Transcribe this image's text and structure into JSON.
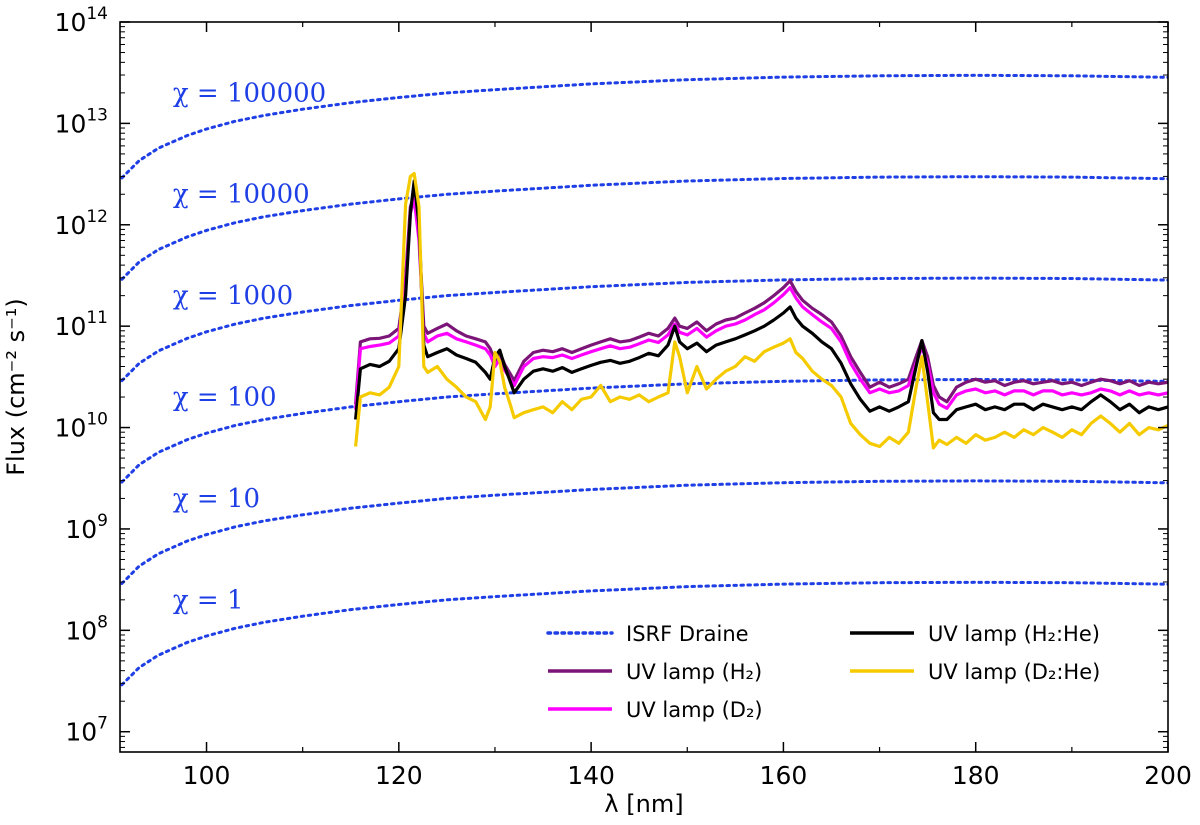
{
  "chart_data": {
    "type": "line",
    "title": "",
    "xlabel": "λ [nm]",
    "ylabel": "Flux (cm⁻² s⁻¹)",
    "xlim": [
      91,
      200
    ],
    "ylim_log10": [
      6.8,
      14
    ],
    "yscale": "log",
    "x_ticks": [
      100,
      120,
      140,
      160,
      180,
      200
    ],
    "y_tick_exponents": [
      7,
      8,
      9,
      10,
      11,
      12,
      13,
      14
    ],
    "colors": {
      "isrf": "#1f3fe6",
      "h2": "#7b1577",
      "d2": "#ff00ff",
      "h2he": "#000000",
      "d2he": "#f5cb00"
    },
    "isrf_scalings": [
      {
        "chi_text": "χ = 100000",
        "chi": 100000
      },
      {
        "chi_text": "χ = 10000",
        "chi": 10000
      },
      {
        "chi_text": "χ = 1000",
        "chi": 1000
      },
      {
        "chi_text": "χ = 100",
        "chi": 100
      },
      {
        "chi_text": "χ = 10",
        "chi": 10
      },
      {
        "chi_text": "χ = 1",
        "chi": 1
      }
    ],
    "isrf_base_curve": {
      "wavelength_nm": [
        91.2,
        93,
        95,
        98,
        100,
        103,
        106,
        110,
        115,
        120,
        125,
        130,
        140,
        150,
        160,
        170,
        180,
        190,
        200
      ],
      "flux_chi1": [
        29000000.0,
        43000000.0,
        57000000.0,
        76000000.0,
        88000000.0,
        105000000.0,
        120000000.0,
        138000000.0,
        160000000.0,
        180000000.0,
        200000000.0,
        215000000.0,
        245000000.0,
        270000000.0,
        286000000.0,
        295000000.0,
        298000000.0,
        295000000.0,
        285000000.0
      ]
    },
    "series": [
      {
        "name": "UV lamp (H₂)",
        "key": "h2",
        "x": [
          115.5,
          116,
          117,
          118,
          119,
          120,
          120.7,
          121.2,
          121.6,
          122.1,
          122.6,
          123,
          124,
          125,
          126,
          127,
          128,
          129,
          129.5,
          130,
          130.5,
          131,
          131.5,
          132,
          133,
          134,
          135,
          136,
          137,
          138,
          139,
          140,
          141,
          142,
          143,
          144,
          145,
          146,
          147,
          148,
          148.7,
          149.2,
          150,
          151,
          152,
          153,
          154,
          155,
          156,
          157,
          158,
          159,
          160,
          160.7,
          161.3,
          162,
          163,
          164,
          165,
          166,
          167,
          168,
          169,
          170,
          171,
          172,
          173,
          173.8,
          174.4,
          175,
          175.6,
          176.2,
          177,
          178,
          179,
          180,
          181,
          182,
          183,
          184,
          185,
          186,
          187,
          188,
          189,
          190,
          191,
          192,
          193,
          194,
          195,
          196,
          197,
          198,
          199,
          200
        ],
        "y": [
          17000000000.0,
          70000000000.0,
          75000000000.0,
          76000000000.0,
          80000000000.0,
          95000000000.0,
          300000000000.0,
          1500000000000.0,
          2000000000000.0,
          800000000000.0,
          100000000000.0,
          85000000000.0,
          95000000000.0,
          105000000000.0,
          90000000000.0,
          80000000000.0,
          75000000000.0,
          70000000000.0,
          60000000000.0,
          45000000000.0,
          55000000000.0,
          42000000000.0,
          35000000000.0,
          29000000000.0,
          45000000000.0,
          55000000000.0,
          58000000000.0,
          56000000000.0,
          60000000000.0,
          55000000000.0,
          60000000000.0,
          65000000000.0,
          70000000000.0,
          75000000000.0,
          70000000000.0,
          72000000000.0,
          78000000000.0,
          85000000000.0,
          80000000000.0,
          95000000000.0,
          120000000000.0,
          100000000000.0,
          95000000000.0,
          110000000000.0,
          90000000000.0,
          105000000000.0,
          115000000000.0,
          120000000000.0,
          135000000000.0,
          150000000000.0,
          170000000000.0,
          200000000000.0,
          240000000000.0,
          280000000000.0,
          220000000000.0,
          180000000000.0,
          150000000000.0,
          130000000000.0,
          110000000000.0,
          80000000000.0,
          50000000000.0,
          35000000000.0,
          25000000000.0,
          28000000000.0,
          25000000000.0,
          27000000000.0,
          30000000000.0,
          50000000000.0,
          72000000000.0,
          50000000000.0,
          26000000000.0,
          20000000000.0,
          18000000000.0,
          25000000000.0,
          28000000000.0,
          30000000000.0,
          28000000000.0,
          29000000000.0,
          26000000000.0,
          28000000000.0,
          29000000000.0,
          27000000000.0,
          28000000000.0,
          29000000000.0,
          27000000000.0,
          28000000000.0,
          26000000000.0,
          28000000000.0,
          30000000000.0,
          29000000000.0,
          27000000000.0,
          29000000000.0,
          26000000000.0,
          28000000000.0,
          27000000000.0,
          28000000000.0
        ]
      },
      {
        "name": "UV lamp (D₂)",
        "key": "d2",
        "x": [
          115.5,
          116,
          117,
          118,
          119,
          120,
          120.7,
          121.2,
          121.6,
          122.1,
          122.6,
          123,
          124,
          125,
          126,
          127,
          128,
          129,
          129.5,
          130,
          130.5,
          131,
          131.5,
          132,
          133,
          134,
          135,
          136,
          137,
          138,
          139,
          140,
          141,
          142,
          143,
          144,
          145,
          146,
          147,
          148,
          148.7,
          149.2,
          150,
          151,
          152,
          153,
          154,
          155,
          156,
          157,
          158,
          159,
          160,
          160.7,
          161.3,
          162,
          163,
          164,
          165,
          166,
          167,
          168,
          169,
          170,
          171,
          172,
          173,
          173.8,
          174.4,
          175,
          175.6,
          176.2,
          177,
          178,
          179,
          180,
          181,
          182,
          183,
          184,
          185,
          186,
          187,
          188,
          189,
          190,
          191,
          192,
          193,
          194,
          195,
          196,
          197,
          198,
          199,
          200
        ],
        "y": [
          15000000000.0,
          60000000000.0,
          63000000000.0,
          65000000000.0,
          68000000000.0,
          80000000000.0,
          260000000000.0,
          1300000000000.0,
          1800000000000.0,
          700000000000.0,
          85000000000.0,
          70000000000.0,
          80000000000.0,
          85000000000.0,
          75000000000.0,
          70000000000.0,
          65000000000.0,
          60000000000.0,
          52000000000.0,
          40000000000.0,
          48000000000.0,
          37000000000.0,
          31000000000.0,
          26000000000.0,
          40000000000.0,
          48000000000.0,
          50000000000.0,
          49000000000.0,
          52000000000.0,
          48000000000.0,
          52000000000.0,
          56000000000.0,
          60000000000.0,
          64000000000.0,
          60000000000.0,
          62000000000.0,
          67000000000.0,
          73000000000.0,
          69000000000.0,
          82000000000.0,
          105000000000.0,
          87000000000.0,
          82000000000.0,
          95000000000.0,
          78000000000.0,
          90000000000.0,
          100000000000.0,
          105000000000.0,
          115000000000.0,
          130000000000.0,
          145000000000.0,
          170000000000.0,
          205000000000.0,
          240000000000.0,
          190000000000.0,
          155000000000.0,
          130000000000.0,
          110000000000.0,
          95000000000.0,
          70000000000.0,
          43000000000.0,
          30000000000.0,
          22000000000.0,
          24000000000.0,
          22000000000.0,
          23000000000.0,
          26000000000.0,
          43000000000.0,
          62000000000.0,
          43000000000.0,
          22000000000.0,
          17000000000.0,
          15500000000.0,
          21000000000.0,
          23000000000.0,
          24000000000.0,
          22000000000.0,
          23000000000.0,
          21000000000.0,
          23000000000.0,
          23000000000.0,
          21000000000.0,
          23000000000.0,
          23000000000.0,
          21000000000.0,
          22000000000.0,
          21000000000.0,
          22000000000.0,
          24000000000.0,
          23000000000.0,
          21000000000.0,
          23000000000.0,
          21000000000.0,
          22000000000.0,
          21000000000.0,
          22000000000.0
        ]
      },
      {
        "name": "UV lamp (H₂:He)",
        "key": "h2he",
        "x": [
          115.5,
          116,
          117,
          118,
          119,
          120,
          120.7,
          121.2,
          121.6,
          122.1,
          122.6,
          123,
          124,
          125,
          126,
          127,
          128,
          129,
          129.5,
          130,
          130.5,
          131,
          131.5,
          132,
          133,
          134,
          135,
          136,
          137,
          138,
          139,
          140,
          141,
          142,
          143,
          144,
          145,
          146,
          147,
          148,
          148.7,
          149.2,
          150,
          151,
          152,
          153,
          154,
          155,
          156,
          157,
          158,
          159,
          160,
          160.7,
          161.3,
          162,
          163,
          164,
          165,
          166,
          167,
          168,
          169,
          170,
          171,
          172,
          173,
          173.8,
          174.4,
          175,
          175.6,
          176.2,
          177,
          178,
          179,
          180,
          181,
          182,
          183,
          184,
          185,
          186,
          187,
          188,
          189,
          190,
          191,
          192,
          193,
          194,
          195,
          196,
          197,
          198,
          199,
          200
        ],
        "y": [
          12000000000.0,
          38000000000.0,
          42000000000.0,
          40000000000.0,
          45000000000.0,
          60000000000.0,
          200000000000.0,
          1300000000000.0,
          2700000000000.0,
          1000000000000.0,
          65000000000.0,
          50000000000.0,
          55000000000.0,
          60000000000.0,
          52000000000.0,
          48000000000.0,
          44000000000.0,
          35000000000.0,
          30000000000.0,
          50000000000.0,
          58000000000.0,
          40000000000.0,
          30000000000.0,
          22000000000.0,
          30000000000.0,
          36000000000.0,
          38000000000.0,
          36000000000.0,
          39000000000.0,
          35000000000.0,
          38000000000.0,
          41000000000.0,
          44000000000.0,
          46000000000.0,
          43000000000.0,
          45000000000.0,
          49000000000.0,
          54000000000.0,
          51000000000.0,
          65000000000.0,
          100000000000.0,
          70000000000.0,
          60000000000.0,
          68000000000.0,
          56000000000.0,
          65000000000.0,
          70000000000.0,
          75000000000.0,
          82000000000.0,
          90000000000.0,
          100000000000.0,
          115000000000.0,
          135000000000.0,
          155000000000.0,
          120000000000.0,
          100000000000.0,
          85000000000.0,
          70000000000.0,
          60000000000.0,
          43000000000.0,
          27000000000.0,
          19000000000.0,
          14500000000.0,
          16000000000.0,
          14500000000.0,
          16000000000.0,
          18000000000.0,
          40000000000.0,
          72000000000.0,
          36000000000.0,
          14000000000.0,
          12000000000.0,
          12000000000.0,
          15000000000.0,
          16000000000.0,
          17000000000.0,
          15000000000.0,
          16000000000.0,
          15000000000.0,
          17000000000.0,
          17000000000.0,
          15000000000.0,
          17000000000.0,
          16000000000.0,
          15000000000.0,
          16000000000.0,
          15000000000.0,
          18000000000.0,
          21000000000.0,
          18000000000.0,
          15000000000.0,
          17000000000.0,
          14000000000.0,
          16000000000.0,
          15000000000.0,
          16000000000.0
        ]
      },
      {
        "name": "UV lamp (D₂:He)",
        "key": "d2he",
        "x": [
          115.5,
          116,
          117,
          118,
          119,
          120,
          120.7,
          121.2,
          121.6,
          122.1,
          122.6,
          123,
          124,
          125,
          126,
          127,
          128,
          129,
          129.5,
          130,
          130.5,
          131,
          131.5,
          132,
          133,
          134,
          135,
          136,
          137,
          138,
          139,
          140,
          141,
          142,
          143,
          144,
          145,
          146,
          147,
          148,
          148.7,
          149.2,
          150,
          151,
          152,
          153,
          154,
          155,
          156,
          157,
          158,
          159,
          160,
          160.7,
          161.3,
          162,
          163,
          164,
          165,
          166,
          167,
          168,
          169,
          170,
          171,
          172,
          173,
          173.8,
          174.4,
          175,
          175.6,
          176.2,
          177,
          178,
          179,
          180,
          181,
          182,
          183,
          184,
          185,
          186,
          187,
          188,
          189,
          190,
          191,
          192,
          193,
          194,
          195,
          196,
          197,
          198,
          199,
          200
        ],
        "y": [
          6500000000.0,
          20000000000.0,
          22000000000.0,
          21000000000.0,
          25000000000.0,
          40000000000.0,
          1600000000000.0,
          3000000000000.0,
          3200000000000.0,
          1500000000000.0,
          40000000000.0,
          35000000000.0,
          40000000000.0,
          30000000000.0,
          25000000000.0,
          20000000000.0,
          18000000000.0,
          12000000000.0,
          16000000000.0,
          55000000000.0,
          45000000000.0,
          25000000000.0,
          18000000000.0,
          12500000000.0,
          14000000000.0,
          15000000000.0,
          16000000000.0,
          14000000000.0,
          18000000000.0,
          15000000000.0,
          19000000000.0,
          20000000000.0,
          26000000000.0,
          18000000000.0,
          20000000000.0,
          19000000000.0,
          21000000000.0,
          18000000000.0,
          20000000000.0,
          22000000000.0,
          70000000000.0,
          50000000000.0,
          22000000000.0,
          40000000000.0,
          24000000000.0,
          30000000000.0,
          36000000000.0,
          40000000000.0,
          50000000000.0,
          45000000000.0,
          56000000000.0,
          62000000000.0,
          68000000000.0,
          75000000000.0,
          55000000000.0,
          48000000000.0,
          36000000000.0,
          30000000000.0,
          26000000000.0,
          20000000000.0,
          11000000000.0,
          8500000000.0,
          7000000000.0,
          6500000000.0,
          8000000000.0,
          7000000000.0,
          9000000000.0,
          25000000000.0,
          50000000000.0,
          18000000000.0,
          6300000000.0,
          7500000000.0,
          6800000000.0,
          8000000000.0,
          7000000000.0,
          8500000000.0,
          7500000000.0,
          8000000000.0,
          9000000000.0,
          8000000000.0,
          9500000000.0,
          8500000000.0,
          10000000000.0,
          9000000000.0,
          8000000000.0,
          9500000000.0,
          8500000000.0,
          11000000000.0,
          13000000000.0,
          11000000000.0,
          9000000000.0,
          11000000000.0,
          8500000000.0,
          10000000000.0,
          9500000000.0,
          10500000000.0
        ]
      }
    ],
    "legend": {
      "placement": "lower-right",
      "entries": [
        {
          "label": "ISRF Draine",
          "key": "isrf",
          "style": "dotted"
        },
        {
          "label": "UV lamp (H₂)",
          "key": "h2",
          "style": "solid"
        },
        {
          "label": "UV lamp (D₂)",
          "key": "d2",
          "style": "solid"
        },
        {
          "label": "UV lamp (H₂:He)",
          "key": "h2he",
          "style": "solid"
        },
        {
          "label": "UV lamp (D₂:He)",
          "key": "d2he",
          "style": "solid"
        }
      ]
    }
  }
}
